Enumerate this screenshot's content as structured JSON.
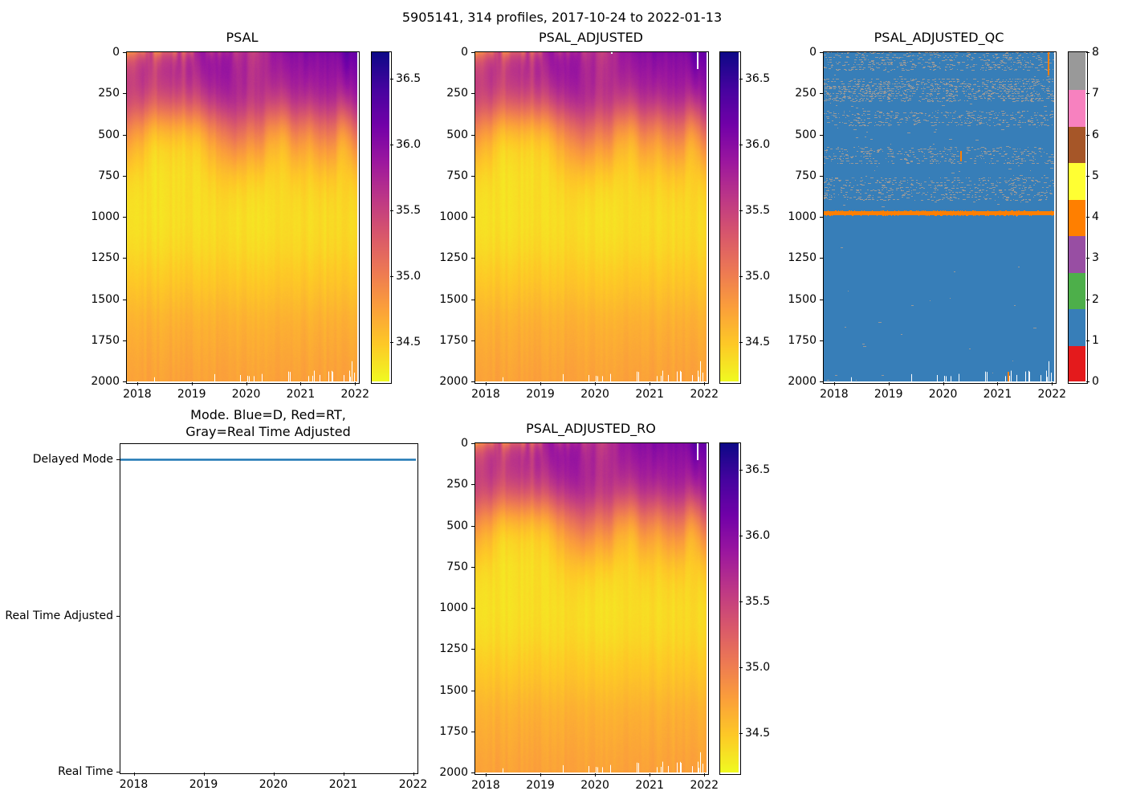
{
  "figure": {
    "title": "5905141, 314 profiles, 2017-10-24 to 2022-01-13",
    "platform_id": "5905141",
    "n_profiles": 314,
    "date_range": "2017-10-24 to 2022-01-13",
    "background": "#ffffff",
    "text_color": "#000000"
  },
  "chart_data": [
    {
      "id": "psal",
      "type": "heatmap",
      "title": "PSAL",
      "xlabel": "",
      "ylabel": "",
      "xlim": [
        2017.81,
        2022.04
      ],
      "ylim": [
        0,
        2000
      ],
      "y_inverted": true,
      "xticks": [
        2018,
        2019,
        2020,
        2021,
        2022
      ],
      "xtick_labels": [
        "2018",
        "2019",
        "2020",
        "2021",
        "2022"
      ],
      "yticks": [
        0,
        250,
        500,
        750,
        1000,
        1250,
        1500,
        1750,
        2000
      ],
      "ytick_labels": [
        "0",
        "250",
        "500",
        "750",
        "1000",
        "1250",
        "1500",
        "1750",
        "2000"
      ],
      "colormap": "plasma_r",
      "clim": [
        34.2,
        36.7
      ],
      "colorbar_ticks": [
        36.5,
        36.0,
        35.5,
        35.0,
        34.5
      ],
      "colorbar_tick_labels": [
        "36.5",
        "36.0",
        "35.5",
        "35.0",
        "34.5"
      ],
      "mean_profile": [
        [
          0,
          35.78
        ],
        [
          50,
          35.76
        ],
        [
          100,
          35.74
        ],
        [
          150,
          35.71
        ],
        [
          200,
          35.67
        ],
        [
          250,
          35.6
        ],
        [
          300,
          35.5
        ],
        [
          350,
          35.36
        ],
        [
          400,
          35.2
        ],
        [
          450,
          35.04
        ],
        [
          500,
          34.9
        ],
        [
          550,
          34.78
        ],
        [
          600,
          34.68
        ],
        [
          650,
          34.6
        ],
        [
          700,
          34.53
        ],
        [
          750,
          34.47
        ],
        [
          800,
          34.43
        ],
        [
          850,
          34.4
        ],
        [
          900,
          34.38
        ],
        [
          1000,
          34.36
        ],
        [
          1100,
          34.37
        ],
        [
          1200,
          34.4
        ],
        [
          1300,
          34.45
        ],
        [
          1400,
          34.5
        ],
        [
          1500,
          34.56
        ],
        [
          1600,
          34.62
        ],
        [
          1700,
          34.66
        ],
        [
          1800,
          34.69
        ],
        [
          1900,
          34.72
        ],
        [
          2000,
          34.74
        ]
      ],
      "surface_trend": {
        "start": 35.6,
        "end": 36.3
      },
      "salinity_min_depth_range": [
        900,
        1200
      ],
      "bottom_data_gaps": true,
      "missing_data_streaks": []
    },
    {
      "id": "psal-adjusted",
      "type": "heatmap",
      "title": "PSAL_ADJUSTED",
      "xlabel": "",
      "ylabel": "",
      "xlim": [
        2017.81,
        2022.04
      ],
      "ylim": [
        0,
        2000
      ],
      "y_inverted": true,
      "xticks": [
        2018,
        2019,
        2020,
        2021,
        2022
      ],
      "xtick_labels": [
        "2018",
        "2019",
        "2020",
        "2021",
        "2022"
      ],
      "yticks": [
        0,
        250,
        500,
        750,
        1000,
        1250,
        1500,
        1750,
        2000
      ],
      "ytick_labels": [
        "0",
        "250",
        "500",
        "750",
        "1000",
        "1250",
        "1500",
        "1750",
        "2000"
      ],
      "colormap": "plasma_r",
      "clim": [
        34.2,
        36.7
      ],
      "colorbar_ticks": [
        36.5,
        36.0,
        35.5,
        35.0,
        34.5
      ],
      "colorbar_tick_labels": [
        "36.5",
        "36.0",
        "35.5",
        "35.0",
        "34.5"
      ],
      "mean_profile": [
        [
          0,
          35.78
        ],
        [
          50,
          35.76
        ],
        [
          100,
          35.74
        ],
        [
          150,
          35.71
        ],
        [
          200,
          35.67
        ],
        [
          250,
          35.6
        ],
        [
          300,
          35.5
        ],
        [
          350,
          35.36
        ],
        [
          400,
          35.2
        ],
        [
          450,
          35.04
        ],
        [
          500,
          34.9
        ],
        [
          550,
          34.78
        ],
        [
          600,
          34.68
        ],
        [
          650,
          34.6
        ],
        [
          700,
          34.53
        ],
        [
          750,
          34.47
        ],
        [
          800,
          34.43
        ],
        [
          850,
          34.4
        ],
        [
          900,
          34.38
        ],
        [
          1000,
          34.36
        ],
        [
          1100,
          34.37
        ],
        [
          1200,
          34.4
        ],
        [
          1300,
          34.45
        ],
        [
          1400,
          34.5
        ],
        [
          1500,
          34.56
        ],
        [
          1600,
          34.62
        ],
        [
          1700,
          34.66
        ],
        [
          1800,
          34.69
        ],
        [
          1900,
          34.72
        ],
        [
          2000,
          34.74
        ]
      ],
      "surface_trend": {
        "start": 35.6,
        "end": 36.3
      },
      "salinity_min_depth_range": [
        900,
        1200
      ],
      "bottom_data_gaps": true,
      "missing_data_streaks": [
        {
          "time": 2021.88,
          "depth": [
            0,
            100
          ]
        },
        {
          "time": 2020.3,
          "depth": [
            0,
            10
          ]
        }
      ]
    },
    {
      "id": "psal-adjusted-qc",
      "type": "heatmap",
      "categorical": true,
      "title": "PSAL_ADJUSTED_QC",
      "xlim": [
        2017.81,
        2022.04
      ],
      "ylim": [
        0,
        2000
      ],
      "y_inverted": true,
      "xticks": [
        2018,
        2019,
        2020,
        2021,
        2022
      ],
      "xtick_labels": [
        "2018",
        "2019",
        "2020",
        "2021",
        "2022"
      ],
      "yticks": [
        0,
        250,
        500,
        750,
        1000,
        1250,
        1500,
        1750,
        2000
      ],
      "ytick_labels": [
        "0",
        "250",
        "500",
        "750",
        "1000",
        "1250",
        "1500",
        "1750",
        "2000"
      ],
      "flag_scale": {
        "min": 0,
        "max": 8
      },
      "colorbar_ticks": [
        8,
        7,
        6,
        5,
        4,
        3,
        2,
        1,
        0
      ],
      "colorbar_tick_labels": [
        "8",
        "7",
        "6",
        "5",
        "4",
        "3",
        "2",
        "1",
        "0"
      ],
      "flag_colors": [
        "#e41a1c",
        "#377eb8",
        "#4daf4a",
        "#984ea3",
        "#ff7f00",
        "#ffff33",
        "#a65628",
        "#f781bf",
        "#999999"
      ],
      "base_flag": 1,
      "gray_flag": 8,
      "gray_speckle_bands": [
        [
          0,
          112,
          0.3
        ],
        [
          160,
          300,
          0.4
        ],
        [
          192,
          282,
          0.52
        ],
        [
          352,
          452,
          0.26
        ],
        [
          572,
          678,
          0.26
        ],
        [
          758,
          898,
          0.26
        ]
      ],
      "orange_flag": 4,
      "orange_line_depth": [
        968,
        990
      ],
      "orange_streaks": [
        {
          "time": 2021.93,
          "depth": [
            0,
            140
          ]
        },
        {
          "time": 2020.33,
          "depth": [
            600,
            662
          ]
        },
        {
          "time": 2021.2,
          "depth": [
            1942,
            2000
          ]
        }
      ],
      "bottom_data_gaps": true
    },
    {
      "id": "mode",
      "type": "line",
      "title_lines": [
        "Mode. Blue=D, Red=RT,",
        "Gray=Real Time Adjusted"
      ],
      "xlim": [
        2017.81,
        2022.04
      ],
      "xticks": [
        2018,
        2019,
        2020,
        2021,
        2022
      ],
      "xtick_labels": [
        "2018",
        "2019",
        "2020",
        "2021",
        "2022"
      ],
      "categories": [
        "Delayed Mode",
        "Real Time Adjusted",
        "Real Time"
      ],
      "category_values": [
        2,
        1,
        0
      ],
      "ylim": [
        0,
        2.1
      ],
      "series": [
        {
          "name": "mode",
          "color": "#1f77b4",
          "constant_value": "Delayed Mode",
          "value_numeric": 2
        }
      ]
    },
    {
      "id": "psal-adjusted-ro",
      "type": "heatmap",
      "title": "PSAL_ADJUSTED_RO",
      "xlabel": "",
      "ylabel": "",
      "xlim": [
        2017.81,
        2022.04
      ],
      "ylim": [
        0,
        2000
      ],
      "y_inverted": true,
      "xticks": [
        2018,
        2019,
        2020,
        2021,
        2022
      ],
      "xtick_labels": [
        "2018",
        "2019",
        "2020",
        "2021",
        "2022"
      ],
      "yticks": [
        0,
        250,
        500,
        750,
        1000,
        1250,
        1500,
        1750,
        2000
      ],
      "ytick_labels": [
        "0",
        "250",
        "500",
        "750",
        "1000",
        "1250",
        "1500",
        "1750",
        "2000"
      ],
      "colormap": "plasma_r",
      "clim": [
        34.2,
        36.7
      ],
      "colorbar_ticks": [
        36.5,
        36.0,
        35.5,
        35.0,
        34.5
      ],
      "colorbar_tick_labels": [
        "36.5",
        "36.0",
        "35.5",
        "35.0",
        "34.5"
      ],
      "mean_profile": [
        [
          0,
          35.78
        ],
        [
          50,
          35.76
        ],
        [
          100,
          35.74
        ],
        [
          150,
          35.71
        ],
        [
          200,
          35.67
        ],
        [
          250,
          35.6
        ],
        [
          300,
          35.5
        ],
        [
          350,
          35.36
        ],
        [
          400,
          35.2
        ],
        [
          450,
          35.04
        ],
        [
          500,
          34.9
        ],
        [
          550,
          34.78
        ],
        [
          600,
          34.68
        ],
        [
          650,
          34.6
        ],
        [
          700,
          34.53
        ],
        [
          750,
          34.47
        ],
        [
          800,
          34.43
        ],
        [
          850,
          34.4
        ],
        [
          900,
          34.38
        ],
        [
          1000,
          34.36
        ],
        [
          1100,
          34.37
        ],
        [
          1200,
          34.4
        ],
        [
          1300,
          34.45
        ],
        [
          1400,
          34.5
        ],
        [
          1500,
          34.56
        ],
        [
          1600,
          34.62
        ],
        [
          1700,
          34.66
        ],
        [
          1800,
          34.69
        ],
        [
          1900,
          34.72
        ],
        [
          2000,
          34.74
        ]
      ],
      "surface_trend": {
        "start": 35.6,
        "end": 36.3
      },
      "salinity_min_depth_range": [
        900,
        1200
      ],
      "bottom_data_gaps": true,
      "missing_data_streaks": [
        {
          "time": 2021.88,
          "depth": [
            0,
            100
          ]
        }
      ]
    }
  ]
}
